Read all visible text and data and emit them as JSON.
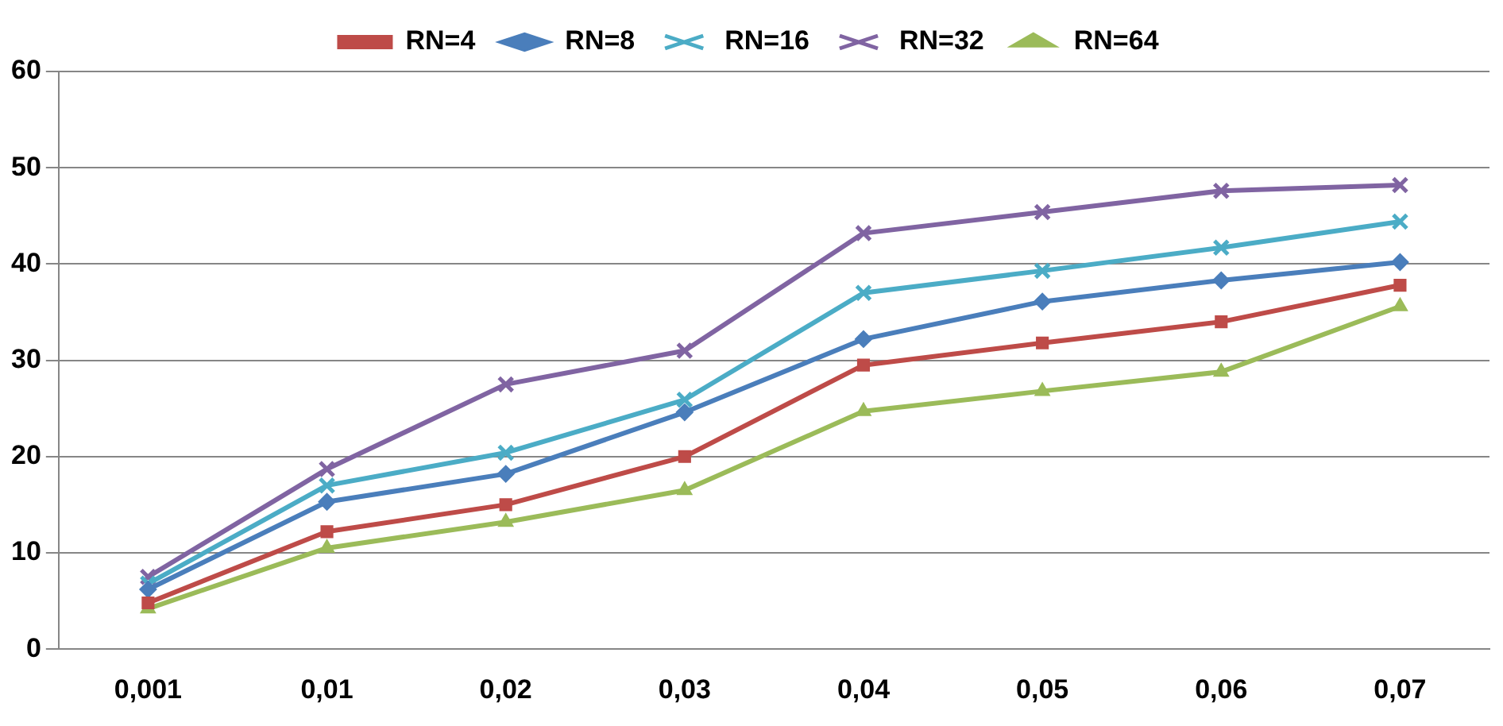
{
  "chart_data": {
    "type": "line",
    "categories": [
      "0,001",
      "0,01",
      "0,02",
      "0,03",
      "0,04",
      "0,05",
      "0,06",
      "0,07"
    ],
    "series": [
      {
        "name": "RN=4",
        "color": "#be4b48",
        "marker": "square",
        "values": [
          4.8,
          12.2,
          15,
          20,
          29.5,
          31.8,
          34,
          37.8
        ]
      },
      {
        "name": "RN=8",
        "color": "#4a7ebb",
        "marker": "diamond",
        "values": [
          6.2,
          15.3,
          18.2,
          24.6,
          32.2,
          36.1,
          38.3,
          40.2
        ]
      },
      {
        "name": "RN=16",
        "color": "#4bacc6",
        "marker": "cross",
        "values": [
          6.8,
          17,
          20.4,
          25.9,
          37,
          39.3,
          41.7,
          44.4
        ]
      },
      {
        "name": "RN=32",
        "color": "#8064a2",
        "marker": "cross",
        "values": [
          7.5,
          18.7,
          27.5,
          31,
          43.2,
          45.4,
          47.6,
          48.2
        ]
      },
      {
        "name": "RN=64",
        "color": "#9bbb59",
        "marker": "triangle",
        "values": [
          4.2,
          10.5,
          13.2,
          16.5,
          24.7,
          26.8,
          28.8,
          35.6
        ]
      }
    ],
    "ylim": [
      0,
      60
    ],
    "yticks": [
      0,
      10,
      20,
      30,
      40,
      50,
      60
    ],
    "grid": "y",
    "legend": "top",
    "line_style": "solid"
  }
}
